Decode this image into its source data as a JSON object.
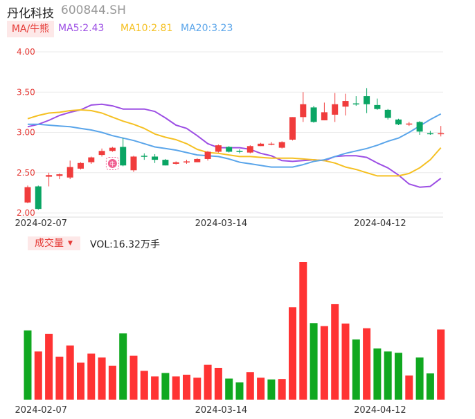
{
  "header": {
    "stock_name": "丹化科技",
    "stock_code": "600844.SH",
    "ma_tab_label": "MA/牛熊",
    "ma5_label": "MA5:2.43",
    "ma10_label": "MA10:2.81",
    "ma20_label": "MA20:3.23"
  },
  "volume_header": {
    "tab_label": "成交量",
    "vol_label": "VOL:16.32万手"
  },
  "colors": {
    "up": "#f03c3c",
    "down": "#0aa564",
    "vol_up": "#ff3333",
    "vol_down": "#10a820",
    "ma5": "#9c4ee4",
    "ma10": "#f5c022",
    "ma20": "#5aa5ea",
    "bull_badge": "#f06292"
  },
  "chart_data": [
    {
      "type": "candlestick",
      "title": "",
      "y_ticks": [
        "4.00",
        "3.50",
        "3.00",
        "2.50",
        "2.00"
      ],
      "ylim": [
        2.0,
        4.0
      ],
      "x_tick_labels": [
        "2024-02-07",
        "2024-03-14",
        "2024-04-12"
      ],
      "x_tick_index": [
        1,
        18,
        33
      ],
      "grid": true,
      "candles": [
        {
          "o": 2.13,
          "c": 2.32,
          "h": 2.34,
          "l": 2.12
        },
        {
          "o": 2.33,
          "c": 2.05,
          "h": 2.34,
          "l": 2.04
        },
        {
          "o": 2.45,
          "c": 2.47,
          "h": 2.5,
          "l": 2.33
        },
        {
          "o": 2.46,
          "c": 2.48,
          "h": 2.49,
          "l": 2.42
        },
        {
          "o": 2.44,
          "c": 2.57,
          "h": 2.65,
          "l": 2.42
        },
        {
          "o": 2.55,
          "c": 2.62,
          "h": 2.63,
          "l": 2.54
        },
        {
          "o": 2.63,
          "c": 2.69,
          "h": 2.7,
          "l": 2.61
        },
        {
          "o": 2.72,
          "c": 2.77,
          "h": 2.8,
          "l": 2.7
        },
        {
          "o": 2.77,
          "c": 2.81,
          "h": 2.82,
          "l": 2.76
        },
        {
          "o": 2.82,
          "c": 2.59,
          "h": 2.93,
          "l": 2.58
        },
        {
          "o": 2.53,
          "c": 2.7,
          "h": 2.71,
          "l": 2.51
        },
        {
          "o": 2.71,
          "c": 2.7,
          "h": 2.74,
          "l": 2.66
        },
        {
          "o": 2.7,
          "c": 2.66,
          "h": 2.73,
          "l": 2.62
        },
        {
          "o": 2.66,
          "c": 2.59,
          "h": 2.67,
          "l": 2.59
        },
        {
          "o": 2.61,
          "c": 2.63,
          "h": 2.64,
          "l": 2.6
        },
        {
          "o": 2.63,
          "c": 2.64,
          "h": 2.66,
          "l": 2.61
        },
        {
          "o": 2.63,
          "c": 2.67,
          "h": 2.68,
          "l": 2.63
        },
        {
          "o": 2.67,
          "c": 2.76,
          "h": 2.77,
          "l": 2.65
        },
        {
          "o": 2.76,
          "c": 2.84,
          "h": 2.85,
          "l": 2.75
        },
        {
          "o": 2.82,
          "c": 2.76,
          "h": 2.83,
          "l": 2.75
        },
        {
          "o": 2.77,
          "c": 2.76,
          "h": 2.79,
          "l": 2.74
        },
        {
          "o": 2.75,
          "c": 2.83,
          "h": 2.84,
          "l": 2.74
        },
        {
          "o": 2.83,
          "c": 2.86,
          "h": 2.87,
          "l": 2.83
        },
        {
          "o": 2.86,
          "c": 2.86,
          "h": 2.88,
          "l": 2.84
        },
        {
          "o": 2.81,
          "c": 2.88,
          "h": 2.89,
          "l": 2.8
        },
        {
          "o": 2.91,
          "c": 3.19,
          "h": 3.19,
          "l": 2.9
        },
        {
          "o": 3.19,
          "c": 3.35,
          "h": 3.5,
          "l": 3.13
        },
        {
          "o": 3.31,
          "c": 3.13,
          "h": 3.33,
          "l": 3.12
        },
        {
          "o": 3.15,
          "c": 3.25,
          "h": 3.37,
          "l": 3.15
        },
        {
          "o": 3.22,
          "c": 3.35,
          "h": 3.49,
          "l": 3.13
        },
        {
          "o": 3.32,
          "c": 3.39,
          "h": 3.48,
          "l": 3.21
        },
        {
          "o": 3.36,
          "c": 3.35,
          "h": 3.45,
          "l": 3.33
        },
        {
          "o": 3.45,
          "c": 3.35,
          "h": 3.55,
          "l": 3.24
        },
        {
          "o": 3.34,
          "c": 3.29,
          "h": 3.42,
          "l": 3.28
        },
        {
          "o": 3.28,
          "c": 3.18,
          "h": 3.29,
          "l": 3.16
        },
        {
          "o": 3.16,
          "c": 3.1,
          "h": 3.17,
          "l": 3.09
        },
        {
          "o": 3.1,
          "c": 3.11,
          "h": 3.13,
          "l": 3.08
        },
        {
          "o": 3.13,
          "c": 3.01,
          "h": 3.14,
          "l": 2.97
        },
        {
          "o": 2.99,
          "c": 2.98,
          "h": 3.02,
          "l": 2.97
        },
        {
          "o": 2.98,
          "c": 2.99,
          "h": 3.08,
          "l": 2.95
        }
      ],
      "ma5": [
        3.07,
        3.1,
        3.15,
        3.21,
        3.25,
        3.28,
        3.34,
        3.35,
        3.33,
        3.29,
        3.29,
        3.29,
        3.26,
        3.18,
        3.09,
        3.05,
        2.96,
        2.86,
        2.81,
        2.81,
        2.81,
        2.79,
        2.74,
        2.71,
        2.65,
        2.64,
        2.65,
        2.66,
        2.65,
        2.7,
        2.71,
        2.71,
        2.69,
        2.62,
        2.56,
        2.47,
        2.36,
        2.32,
        2.33,
        2.43
      ],
      "ma10": [
        3.17,
        3.21,
        3.24,
        3.25,
        3.27,
        3.28,
        3.27,
        3.24,
        3.19,
        3.14,
        3.1,
        3.05,
        2.98,
        2.94,
        2.91,
        2.86,
        2.79,
        2.75,
        2.74,
        2.72,
        2.7,
        2.7,
        2.69,
        2.68,
        2.68,
        2.68,
        2.67,
        2.66,
        2.65,
        2.62,
        2.57,
        2.54,
        2.5,
        2.46,
        2.46,
        2.46,
        2.49,
        2.56,
        2.66,
        2.81
      ],
      "ma20": [
        3.1,
        3.1,
        3.09,
        3.08,
        3.07,
        3.05,
        3.03,
        3.0,
        2.96,
        2.93,
        2.9,
        2.86,
        2.82,
        2.8,
        2.78,
        2.75,
        2.72,
        2.71,
        2.7,
        2.67,
        2.63,
        2.61,
        2.59,
        2.57,
        2.57,
        2.57,
        2.6,
        2.64,
        2.66,
        2.7,
        2.74,
        2.77,
        2.8,
        2.84,
        2.89,
        2.93,
        3.0,
        3.08,
        3.16,
        3.23
      ],
      "bull_marker_index": 8
    },
    {
      "type": "bar",
      "title": "成交量",
      "unit": "万手",
      "x_tick_labels": [
        "2024-02-07",
        "2024-03-14",
        "2024-04-12"
      ],
      "x_tick_index": [
        1,
        18,
        33
      ],
      "values": [
        16.1,
        11.2,
        15.3,
        10.0,
        12.6,
        8.6,
        10.7,
        9.8,
        7.9,
        15.4,
        10.2,
        6.7,
        5.4,
        6.2,
        5.4,
        5.8,
        5.1,
        8.1,
        7.4,
        4.9,
        4.0,
        6.4,
        5.1,
        4.7,
        4.8,
        21.5,
        32.0,
        17.8,
        17.1,
        22.2,
        17.7,
        14.0,
        16.6,
        11.9,
        11.2,
        10.9,
        5.6,
        9.8,
        6.1,
        16.32
      ],
      "up": [
        false,
        true,
        true,
        true,
        true,
        true,
        true,
        true,
        true,
        false,
        true,
        true,
        true,
        false,
        true,
        true,
        true,
        true,
        true,
        false,
        false,
        true,
        true,
        false,
        true,
        true,
        true,
        false,
        true,
        true,
        true,
        false,
        true,
        false,
        false,
        false,
        true,
        false,
        false,
        true
      ]
    }
  ]
}
